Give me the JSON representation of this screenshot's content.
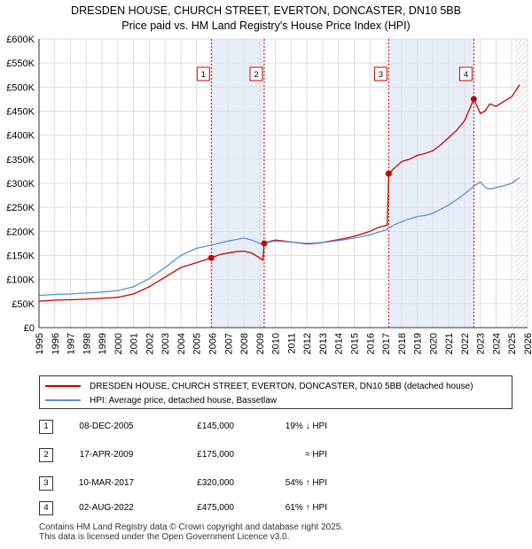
{
  "title_line1": "DRESDEN HOUSE, CHURCH STREET, EVERTON, DONCASTER, DN10 5BB",
  "title_line2": "Price paid vs. HM Land Registry's House Price Index (HPI)",
  "chart_data": {
    "type": "line",
    "title": "DRESDEN HOUSE, CHURCH STREET, EVERTON, DONCASTER, DN10 5BB — Price paid vs. HM Land Registry's House Price Index (HPI)",
    "xlim": [
      1995,
      2026
    ],
    "ylim": [
      0,
      600000
    ],
    "x_ticks": [
      1995,
      1996,
      1997,
      1998,
      1999,
      2000,
      2001,
      2002,
      2003,
      2004,
      2005,
      2006,
      2007,
      2008,
      2009,
      2010,
      2011,
      2012,
      2013,
      2014,
      2015,
      2016,
      2017,
      2018,
      2019,
      2020,
      2021,
      2022,
      2023,
      2024,
      2025,
      2026
    ],
    "y_ticks": [
      0,
      50000,
      100000,
      150000,
      200000,
      250000,
      300000,
      350000,
      400000,
      450000,
      500000,
      550000,
      600000
    ],
    "y_tick_labels": [
      "£0",
      "£50K",
      "£100K",
      "£150K",
      "£200K",
      "£250K",
      "£300K",
      "£350K",
      "£400K",
      "£450K",
      "£500K",
      "£550K",
      "£600K"
    ],
    "grid": true,
    "shaded_periods": [
      [
        2005.93,
        2009.29
      ],
      [
        2017.19,
        2022.59
      ]
    ],
    "forecast_from": 2025.2,
    "series": [
      {
        "name": "DRESDEN HOUSE, CHURCH STREET, EVERTON, DONCASTER, DN10 5BB (detached house)",
        "color": "#cc0000",
        "x": [
          1995,
          1996,
          1997,
          1998,
          1999,
          2000,
          2001,
          2002,
          2003,
          2004,
          2005,
          2005.93,
          2006.5,
          2007,
          2007.5,
          2008,
          2008.5,
          2009,
          2009.2,
          2009.29,
          2009.5,
          2010,
          2010.5,
          2011,
          2011.5,
          2012,
          2012.5,
          2013,
          2013.5,
          2014,
          2014.5,
          2015,
          2015.5,
          2016,
          2016.5,
          2017.1,
          2017.19,
          2017.5,
          2018,
          2018.5,
          2019,
          2019.5,
          2020,
          2020.5,
          2021,
          2021.5,
          2022,
          2022.59,
          2022.8,
          2023,
          2023.3,
          2023.6,
          2024,
          2024.5,
          2025,
          2025.5
        ],
        "y": [
          55000,
          57000,
          58000,
          59000,
          61000,
          63000,
          70000,
          85000,
          105000,
          125000,
          135000,
          145000,
          152000,
          155000,
          158000,
          159000,
          155000,
          145000,
          140000,
          175000,
          178000,
          182000,
          180000,
          178000,
          176000,
          174000,
          175000,
          177000,
          180000,
          183000,
          186000,
          190000,
          195000,
          200000,
          208000,
          213000,
          320000,
          330000,
          345000,
          350000,
          358000,
          362000,
          368000,
          380000,
          395000,
          410000,
          430000,
          475000,
          460000,
          445000,
          450000,
          465000,
          460000,
          470000,
          480000,
          505000
        ]
      },
      {
        "name": "HPI: Average price, detached house, Bassetlaw",
        "color": "#5b8fd0",
        "x": [
          1995,
          1996,
          1997,
          1998,
          1999,
          2000,
          2001,
          2002,
          2003,
          2004,
          2005,
          2006,
          2006.5,
          2007,
          2007.5,
          2008,
          2008.5,
          2009,
          2009.29,
          2009.5,
          2010,
          2011,
          2012,
          2013,
          2014,
          2015,
          2016,
          2017,
          2017.5,
          2018,
          2018.5,
          2019,
          2019.5,
          2020,
          2020.5,
          2021,
          2021.5,
          2022,
          2022.59,
          2023,
          2023.3,
          2023.6,
          2024,
          2024.5,
          2025,
          2025.5
        ],
        "y": [
          67000,
          69000,
          70000,
          72000,
          74000,
          77000,
          85000,
          102000,
          125000,
          150000,
          165000,
          172000,
          176000,
          180000,
          183000,
          186000,
          182000,
          175000,
          173000,
          177000,
          180000,
          178000,
          175000,
          177000,
          181000,
          186000,
          193000,
          203000,
          213000,
          220000,
          226000,
          231000,
          233000,
          238000,
          246000,
          255000,
          266000,
          278000,
          294000,
          303000,
          292000,
          288000,
          291000,
          295000,
          300000,
          312000
        ]
      }
    ],
    "sale_markers": [
      {
        "label": "1",
        "x": 2005.93,
        "y": 145000
      },
      {
        "label": "2",
        "x": 2009.29,
        "y": 175000
      },
      {
        "label": "3",
        "x": 2017.19,
        "y": 320000
      },
      {
        "label": "4",
        "x": 2022.59,
        "y": 475000
      }
    ]
  },
  "legend": {
    "property_label": "DRESDEN HOUSE, CHURCH STREET, EVERTON, DONCASTER, DN10 5BB (detached house)",
    "hpi_label": "HPI: Average price, detached house, Bassetlaw"
  },
  "sales": [
    {
      "num": "1",
      "date": "08-DEC-2005",
      "price": "£145,000",
      "hpi": "19% ↓ HPI"
    },
    {
      "num": "2",
      "date": "17-APR-2009",
      "price": "£175,000",
      "hpi": "≈ HPI"
    },
    {
      "num": "3",
      "date": "10-MAR-2017",
      "price": "£320,000",
      "hpi": "54% ↑ HPI"
    },
    {
      "num": "4",
      "date": "02-AUG-2022",
      "price": "£475,000",
      "hpi": "61% ↑ HPI"
    }
  ],
  "footer_line1": "Contains HM Land Registry data © Crown copyright and database right 2025.",
  "footer_line2": "This data is licensed under the Open Government Licence v3.0.",
  "colors": {
    "property": "#cc0000",
    "hpi": "#5b8fd0",
    "shade": "#e8eef8",
    "grid": "#dddddd"
  }
}
